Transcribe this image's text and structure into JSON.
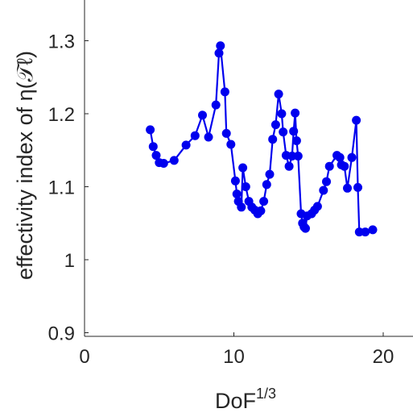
{
  "chart_data": {
    "type": "line",
    "xlabel": "DoF",
    "xlabel_superscript": "1/3",
    "ylabel": "effectivity index of η(𝒯ℓ)",
    "xlim": [
      0,
      22
    ],
    "ylim": [
      0.9,
      1.35
    ],
    "xticks": [
      "0",
      "10",
      "20"
    ],
    "xtick_values": [
      0,
      10,
      20
    ],
    "yticks": [
      "0.9",
      "1",
      "1.1",
      "1.2",
      "1.3"
    ],
    "ytick_values": [
      0.9,
      1.0,
      1.1,
      1.2,
      1.3
    ],
    "line_color": "#0000ee",
    "grid": false,
    "series": [
      {
        "x": [
          4.4,
          4.6,
          4.8,
          5.0,
          5.3,
          6.0,
          6.8,
          7.4,
          7.9,
          8.3,
          8.8,
          9.0,
          9.1,
          9.4,
          9.5,
          9.8,
          10.1,
          10.2,
          10.3,
          10.5,
          10.6,
          10.8,
          11.0,
          11.2,
          11.4,
          11.6,
          11.8,
          12.0,
          12.2,
          12.4,
          12.6,
          12.8,
          13.0,
          13.2,
          13.3,
          13.5,
          13.7,
          13.9,
          14.0,
          14.1,
          14.2,
          14.3,
          14.5,
          14.6,
          14.7,
          14.8,
          14.9,
          15.2,
          15.4,
          15.6,
          16.0,
          16.2,
          16.4,
          16.9,
          17.1,
          17.2,
          17.4,
          17.6,
          17.9,
          18.2,
          18.3,
          18.4,
          18.8,
          19.3
        ],
        "y": [
          1.178,
          1.155,
          1.143,
          1.133,
          1.132,
          1.136,
          1.157,
          1.17,
          1.198,
          1.168,
          1.212,
          1.283,
          1.293,
          1.23,
          1.173,
          1.158,
          1.108,
          1.09,
          1.08,
          1.072,
          1.126,
          1.1,
          1.08,
          1.072,
          1.068,
          1.063,
          1.067,
          1.08,
          1.103,
          1.117,
          1.165,
          1.185,
          1.227,
          1.2,
          1.175,
          1.143,
          1.128,
          1.142,
          1.176,
          1.201,
          1.163,
          1.142,
          1.063,
          1.05,
          1.045,
          1.043,
          1.06,
          1.063,
          1.068,
          1.073,
          1.095,
          1.107,
          1.128,
          1.143,
          1.14,
          1.13,
          1.128,
          1.098,
          1.14,
          1.191,
          1.099,
          1.038,
          1.038,
          1.041
        ]
      }
    ]
  }
}
